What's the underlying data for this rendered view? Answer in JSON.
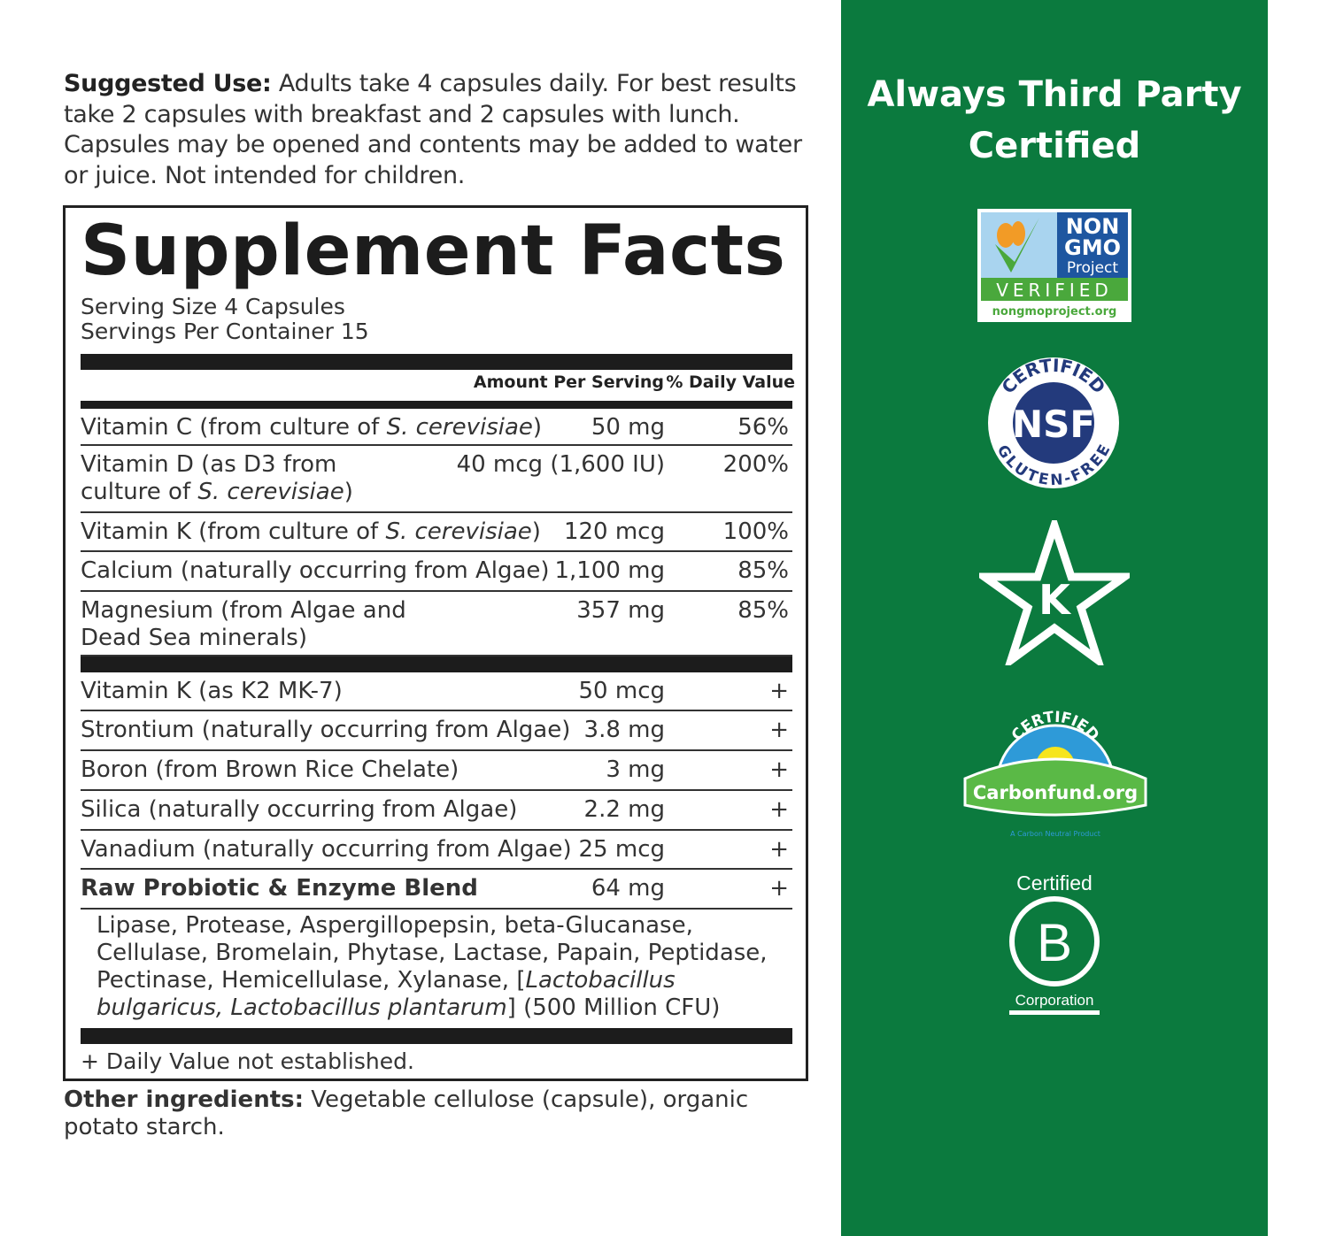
{
  "suggested_use": {
    "label": "Suggested Use:",
    "text": " Adults take 4 capsules daily. For best results take 2 capsules with breakfast and 2 capsules with lunch. Capsules may be opened and contents may be added to water or juice. Not intended for children."
  },
  "facts": {
    "title": "Supplement Facts",
    "serving_size": "Serving Size 4 Capsules",
    "servings_per_container": "Servings Per Container 15",
    "col_amount": "Amount Per Serving",
    "col_dv": "% Daily Value",
    "rows": [
      {
        "name": "Vitamin C (from culture of ",
        "italic": "S. cerevisiae",
        "tail": ")",
        "amount": "50 mg",
        "dv": "56%"
      },
      {
        "name": "Vitamin D (as D3 from culture of ",
        "italic": "S. cerevisiae",
        "tail": ")",
        "amount": "40 mcg (1,600 IU)",
        "dv": "200%"
      },
      {
        "name": "Vitamin K (from culture of ",
        "italic": "S. cerevisiae",
        "tail": ")",
        "amount": "120 mcg",
        "dv": "100%"
      },
      {
        "name": "Calcium (naturally occurring from Algae)",
        "amount": "1,100 mg",
        "dv": "85%"
      },
      {
        "name": "Magnesium (from Algae and Dead Sea minerals)",
        "amount": "357 mg",
        "dv": "85%"
      },
      {
        "name": "Vitamin K (as K2 MK-7)",
        "amount": "50 mcg",
        "dv": "+"
      },
      {
        "name": "Strontium (naturally occurring from Algae)",
        "amount": "3.8 mg",
        "dv": "+"
      },
      {
        "name": "Boron (from Brown Rice Chelate)",
        "amount": "3 mg",
        "dv": "+"
      },
      {
        "name": "Silica (naturally occurring from Algae)",
        "amount": "2.2 mg",
        "dv": "+"
      },
      {
        "name": "Vanadium (naturally occurring from Algae)",
        "amount": "25 mcg",
        "dv": "+"
      },
      {
        "name": "Raw Probiotic & Enzyme Blend",
        "amount": "64 mg",
        "dv": "+"
      }
    ],
    "blend": {
      "text": "Lipase, Protease, Aspergillopepsin, beta-Glucanase, Cellulase, Bromelain, Phytase, Lactase, Papain, Peptidase, Pectinase, Hemicellulase, Xylanase, [",
      "italic": "Lactobacillus bulgaricus, Lactobacillus plantarum",
      "tail": "] (500 Million CFU)"
    },
    "footnote": "+ Daily Value not established."
  },
  "other": {
    "label": "Other ingredients:",
    "text": " Vegetable cellulose (capsule), organic potato starch."
  },
  "panel": {
    "title_1": "Always Third Party",
    "title_2": "Certified",
    "color": "#0b7a3e",
    "badges": {
      "nongmo": {
        "l1": "NON",
        "l2": "GMO",
        "l3": "Project",
        "l4": "VERIFIED",
        "l5": "nongmoproject.org"
      },
      "nsf": {
        "top": "CERTIFIED",
        "center": "NSF",
        "bottom": "GLUTEN-FREE"
      },
      "kosher": {
        "letter": "K"
      },
      "carbonfund": {
        "top": "CERTIFIED",
        "name": "Carbonfund.org",
        "sub": "A Carbon Neutral Product"
      },
      "bcorp": {
        "top": "Certified",
        "letter": "B",
        "bottom": "Corporation"
      }
    }
  }
}
